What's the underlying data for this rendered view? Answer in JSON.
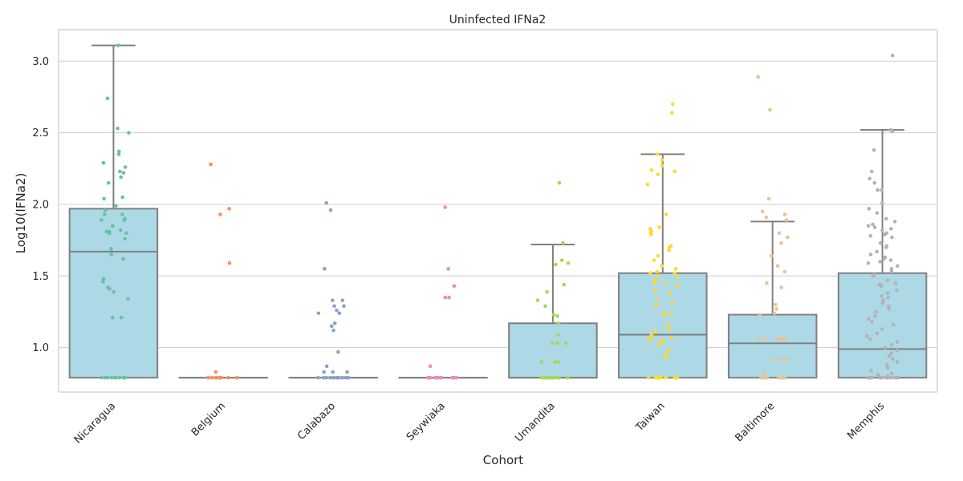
{
  "chart_data": {
    "type": "box",
    "title": "Uninfected IFNa2",
    "xlabel": "Cohort",
    "ylabel": "Log10(IFNa2)",
    "ylim": [
      0.69,
      3.22
    ],
    "y_ticks": [
      "1.0",
      "1.5",
      "2.0",
      "2.5",
      "3.0"
    ],
    "grid": true,
    "box_color": "#add8e6",
    "line_color": "#808080",
    "categories": [
      "Nicaragua",
      "Belgium",
      "Calabazo",
      "Seywiaka",
      "Umandita",
      "Taiwan",
      "Baltimore",
      "Memphis"
    ],
    "boxes": [
      {
        "cohort": "Nicaragua",
        "min": 0.79,
        "q1": 0.79,
        "median": 1.67,
        "q3": 1.97,
        "max": 3.11
      },
      {
        "cohort": "Belgium",
        "min": 0.79,
        "q1": 0.79,
        "median": 0.79,
        "q3": 0.79,
        "max": 0.79
      },
      {
        "cohort": "Calabazo",
        "min": 0.79,
        "q1": 0.79,
        "median": 0.79,
        "q3": 0.79,
        "max": 0.79
      },
      {
        "cohort": "Seywiaka",
        "min": 0.79,
        "q1": 0.79,
        "median": 0.79,
        "q3": 0.79,
        "max": 0.79
      },
      {
        "cohort": "Umandita",
        "min": 0.79,
        "q1": 0.79,
        "median": 0.79,
        "q3": 1.17,
        "max": 1.72
      },
      {
        "cohort": "Taiwan",
        "min": 0.79,
        "q1": 0.79,
        "median": 1.09,
        "q3": 1.52,
        "max": 2.35
      },
      {
        "cohort": "Baltimore",
        "min": 0.79,
        "q1": 0.79,
        "median": 1.03,
        "q3": 1.23,
        "max": 1.88
      },
      {
        "cohort": "Memphis",
        "min": 0.79,
        "q1": 0.79,
        "median": 0.99,
        "q3": 1.52,
        "max": 2.52
      }
    ],
    "points": [
      {
        "cohort": "Nicaragua",
        "color": "#66c2a5",
        "values": [
          3.11,
          2.74,
          2.53,
          2.5,
          2.37,
          2.35,
          2.29,
          2.26,
          2.23,
          2.22,
          2.19,
          2.15,
          2.05,
          2.04,
          1.99,
          1.96,
          1.93,
          1.93,
          1.9,
          1.89,
          1.89,
          1.85,
          1.82,
          1.81,
          1.81,
          1.8,
          1.8,
          1.76,
          1.69,
          1.65,
          1.62,
          1.48,
          1.46,
          1.42,
          1.41,
          1.39,
          1.34,
          1.21,
          1.21,
          0.79,
          0.79,
          0.79,
          0.79,
          0.79,
          0.79,
          0.79,
          0.79,
          0.79,
          0.79
        ]
      },
      {
        "cohort": "Belgium",
        "color": "#fc8d62",
        "values": [
          2.28,
          1.97,
          1.93,
          1.59,
          0.83,
          0.79,
          0.79,
          0.79,
          0.79,
          0.79,
          0.79,
          0.79,
          0.79,
          0.79,
          0.79,
          0.79
        ]
      },
      {
        "cohort": "Calabazo",
        "color": "#8da0cb",
        "values": [
          2.01,
          1.96,
          1.55,
          1.33,
          1.33,
          1.29,
          1.29,
          1.26,
          1.24,
          1.24,
          1.17,
          1.15,
          1.12,
          0.97,
          0.87,
          0.83,
          0.83,
          0.83,
          0.79,
          0.79,
          0.79,
          0.79,
          0.79,
          0.79,
          0.79,
          0.79,
          0.79,
          0.79,
          0.79,
          0.79,
          0.79,
          0.79
        ]
      },
      {
        "cohort": "Seywiaka",
        "color": "#e78ac3",
        "values": [
          1.98,
          1.55,
          1.43,
          1.35,
          1.35,
          0.87,
          0.79,
          0.79,
          0.79,
          0.79,
          0.79,
          0.79,
          0.79,
          0.79,
          0.79,
          0.79,
          0.79,
          0.79,
          0.79
        ]
      },
      {
        "cohort": "Umandita",
        "color": "#a6d854",
        "values": [
          2.15,
          1.73,
          1.61,
          1.59,
          1.58,
          1.44,
          1.39,
          1.33,
          1.29,
          1.23,
          1.22,
          1.17,
          1.09,
          1.03,
          1.03,
          1.03,
          0.9,
          0.9,
          0.9,
          0.79,
          0.79,
          0.79,
          0.79,
          0.79,
          0.79,
          0.79,
          0.79,
          0.79,
          0.79,
          0.79,
          0.79,
          0.79,
          0.79
        ]
      },
      {
        "cohort": "Taiwan",
        "color": "#ffd92f",
        "values": [
          2.7,
          2.64,
          2.35,
          2.31,
          2.27,
          2.24,
          2.23,
          2.21,
          2.14,
          1.93,
          1.84,
          1.83,
          1.81,
          1.8,
          1.79,
          1.71,
          1.7,
          1.68,
          1.64,
          1.61,
          1.57,
          1.55,
          1.53,
          1.52,
          1.52,
          1.5,
          1.49,
          1.47,
          1.45,
          1.45,
          1.43,
          1.4,
          1.38,
          1.33,
          1.31,
          1.29,
          1.24,
          1.24,
          1.23,
          1.16,
          1.13,
          1.11,
          1.09,
          1.07,
          1.06,
          1.06,
          1.05,
          1.04,
          1.02,
          0.98,
          0.95,
          0.93,
          0.79,
          0.79,
          0.79,
          0.79,
          0.79,
          0.79,
          0.79,
          0.79,
          0.79,
          0.79,
          0.79,
          0.79,
          0.79,
          0.79,
          0.79,
          0.79
        ]
      },
      {
        "cohort": "Baltimore",
        "color": "#e5c494",
        "values": [
          2.89,
          2.66,
          2.04,
          1.95,
          1.93,
          1.91,
          1.89,
          1.8,
          1.77,
          1.73,
          1.64,
          1.57,
          1.53,
          1.45,
          1.42,
          1.3,
          1.27,
          1.24,
          1.23,
          1.06,
          1.06,
          1.06,
          1.06,
          1.06,
          1.06,
          0.92,
          0.92,
          0.92,
          0.92,
          0.82,
          0.79,
          0.79,
          0.79,
          0.79,
          0.79,
          0.79,
          0.79,
          0.79,
          0.79,
          0.79,
          0.79
        ]
      },
      {
        "cohort": "Memphis",
        "color": "#b3b3b3",
        "values": [
          3.04,
          2.51,
          2.52,
          2.38,
          2.23,
          2.18,
          2.15,
          2.1,
          2.1,
          2.01,
          1.97,
          1.94,
          1.9,
          1.88,
          1.86,
          1.85,
          1.84,
          1.83,
          1.82,
          1.8,
          1.79,
          1.78,
          1.77,
          1.73,
          1.71,
          1.7,
          1.67,
          1.65,
          1.63,
          1.62,
          1.61,
          1.6,
          1.59,
          1.57,
          1.55,
          1.53,
          1.51,
          1.5,
          1.47,
          1.45,
          1.44,
          1.43,
          1.4,
          1.38,
          1.36,
          1.35,
          1.33,
          1.31,
          1.29,
          1.27,
          1.25,
          1.22,
          1.2,
          1.18,
          1.16,
          1.13,
          1.1,
          1.08,
          1.06,
          1.04,
          1.02,
          1.0,
          0.98,
          0.96,
          0.94,
          0.92,
          0.9,
          0.88,
          0.86,
          0.84,
          0.82,
          0.81,
          0.8,
          0.79,
          0.79,
          0.79,
          0.79,
          0.79,
          0.79,
          0.79,
          0.79,
          0.79,
          0.79,
          0.79,
          0.79,
          0.79,
          0.79,
          0.79,
          0.79,
          0.79
        ]
      }
    ]
  }
}
